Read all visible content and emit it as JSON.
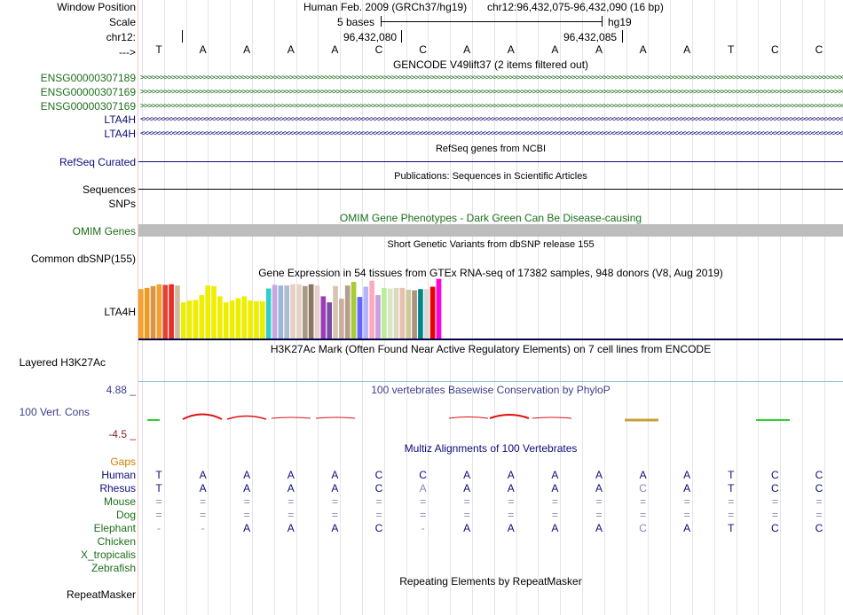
{
  "header": {
    "labels": [
      "Window Position",
      "Scale",
      "chr12:",
      "--->"
    ],
    "assembly": "Human Feb. 2009 (GRCh37/hg19)",
    "position": "chr12:96,432,075-96,432,090 (16 bp)",
    "scale_text": "5 bases",
    "scale_db": "hg19",
    "tick1": "96,432,080",
    "tick2": "96,432,085"
  },
  "bases": [
    "T",
    "A",
    "A",
    "A",
    "A",
    "C",
    "C",
    "A",
    "A",
    "A",
    "A",
    "A",
    "A",
    "T",
    "C",
    "C"
  ],
  "tracks": {
    "gencode": {
      "title": "GENCODE V49lift37 (2 items filtered out)",
      "items": [
        {
          "label": "ENSG00000307189",
          "dir": ">"
        },
        {
          "label": "ENSG00000307169",
          "dir": ">"
        },
        {
          "label": "ENSG00000307169",
          "dir": ">"
        },
        {
          "label": "LTA4H",
          "dir": "<"
        },
        {
          "label": "LTA4H",
          "dir": "<"
        }
      ],
      "color": "#1b6e1b",
      "lta4h_color": "#0c0c78"
    },
    "refseq": {
      "title": "RefSeq genes from NCBI",
      "label": "RefSeq Curated",
      "color": "#0c0c78"
    },
    "publications": {
      "title": "Publications: Sequences in Scientific Articles",
      "label": "Sequences"
    },
    "snps_label": "SNPs",
    "omim": {
      "title": "OMIM Gene Phenotypes - Dark Green Can Be Disease-causing",
      "label": "OMIM Genes",
      "color": "#1b6e1b"
    },
    "dbsnp": {
      "title": "Short Genetic Variants from dbSNP release 155",
      "label": "Common dbSNP(155)"
    },
    "gtex": {
      "title": "Gene Expression in 54 tissues from GTEx RNA-seq of 17382 samples, 948 donors (V8, Aug 2019)",
      "label": "LTA4H",
      "bars": [
        {
          "color": "#f4a131",
          "value": 0.82
        },
        {
          "color": "#ef9a22",
          "value": 0.84
        },
        {
          "color": "#d99445",
          "value": 0.87
        },
        {
          "color": "#f4a131",
          "value": 0.9
        },
        {
          "color": "#dd4436",
          "value": 0.89
        },
        {
          "color": "#ee2c25",
          "value": 0.9
        },
        {
          "color": "#cfbba0",
          "value": 0.88
        },
        {
          "color": "#eeee00",
          "value": 0.6
        },
        {
          "color": "#eeee00",
          "value": 0.63
        },
        {
          "color": "#eeee00",
          "value": 0.64
        },
        {
          "color": "#eeee00",
          "value": 0.72
        },
        {
          "color": "#eeee00",
          "value": 0.88
        },
        {
          "color": "#eeee00",
          "value": 0.87
        },
        {
          "color": "#eeee00",
          "value": 0.7
        },
        {
          "color": "#eeee00",
          "value": 0.6
        },
        {
          "color": "#eeee00",
          "value": 0.63
        },
        {
          "color": "#eeee00",
          "value": 0.67
        },
        {
          "color": "#eeee00",
          "value": 0.7
        },
        {
          "color": "#eeee00",
          "value": 0.63
        },
        {
          "color": "#eeee00",
          "value": 0.62
        },
        {
          "color": "#eeee00",
          "value": 0.62
        },
        {
          "color": "#33cccc",
          "value": 0.83
        },
        {
          "color": "#c8a6e0",
          "value": 0.89
        },
        {
          "color": "#9ab6dc",
          "value": 0.88
        },
        {
          "color": "#aebdce",
          "value": 0.88
        },
        {
          "color": "#e6cfc4",
          "value": 0.9
        },
        {
          "color": "#e6d2c4",
          "value": 0.9
        },
        {
          "color": "#a89a85",
          "value": 0.87
        },
        {
          "color": "#8c7662",
          "value": 0.9
        },
        {
          "color": "#e8cfcf",
          "value": 0.88
        },
        {
          "color": "#9a3db6",
          "value": 0.7
        },
        {
          "color": "#7c4aa5",
          "value": 0.6
        },
        {
          "color": "#d8c4b0",
          "value": 0.87
        },
        {
          "color": "#c8b09a",
          "value": 0.66
        },
        {
          "color": "#b59e8c",
          "value": 0.88
        },
        {
          "color": "#a6cc33",
          "value": 0.94
        },
        {
          "color": "#6666ff",
          "value": 0.69
        },
        {
          "color": "#b3b3ff",
          "value": 0.86
        },
        {
          "color": "#ffaabb",
          "value": 0.96
        },
        {
          "color": "#c8a0e0",
          "value": 0.72
        },
        {
          "color": "#bbee99",
          "value": 0.84
        },
        {
          "color": "#d8e7c6",
          "value": 0.83
        },
        {
          "color": "#ddd8c0",
          "value": 0.84
        },
        {
          "color": "#e8c0b0",
          "value": 0.84
        },
        {
          "color": "#cccc99",
          "value": 0.81
        },
        {
          "color": "#ad9280",
          "value": 0.8
        },
        {
          "color": "#008888",
          "value": 0.82
        },
        {
          "color": "#d9d9d9",
          "value": 0.82
        },
        {
          "color": "#ee0000",
          "value": 0.86
        },
        {
          "color": "#ff00dd",
          "value": 0.99
        },
        {
          "color": "#ffffff",
          "value": 0
        }
      ]
    },
    "h3k27ac": {
      "title": "H3K27Ac Mark (Often Found Near Active Regulatory Elements) on 7 cell lines from ENCODE",
      "label": "Layered H3K27Ac"
    },
    "phylop": {
      "title": "100 vertebrates Basewise Conservation by PhyloP",
      "label": "100 Vert. Cons",
      "max": "4.88 _",
      "min": "-4.5 _",
      "color": "#3c3c8c",
      "min_color": "#8c1c1c"
    },
    "multiz": {
      "title": "Multiz Alignments of 100 Vertebrates",
      "gaps_label": "Gaps",
      "gaps_color": "#d08000",
      "species": [
        {
          "name": "Human",
          "color": "#0c0c78",
          "bases": [
            "T",
            "A",
            "A",
            "A",
            "A",
            "C",
            "C",
            "A",
            "A",
            "A",
            "A",
            "A",
            "A",
            "T",
            "C",
            "C"
          ]
        },
        {
          "name": "Rhesus",
          "color": "#0c0c78",
          "bases": [
            "T",
            "A",
            "A",
            "A",
            "A",
            "C",
            "A",
            "A",
            "A",
            "A",
            "A",
            "C",
            "A",
            "T",
            "C",
            "C"
          ]
        },
        {
          "name": "Mouse",
          "color": "#1b6e1b",
          "bases": [
            "=",
            "=",
            "=",
            "=",
            "=",
            "=",
            "=",
            "=",
            "=",
            "=",
            "=",
            "=",
            "=",
            "=",
            "=",
            "="
          ]
        },
        {
          "name": "Dog",
          "color": "#1b6e1b",
          "bases": [
            "=",
            "=",
            "=",
            "=",
            "=",
            "=",
            "=",
            "=",
            "=",
            "=",
            "=",
            "=",
            "=",
            "=",
            "=",
            "="
          ]
        },
        {
          "name": "Elephant",
          "color": "#1b6e1b",
          "bases": [
            "-",
            "-",
            "A",
            "A",
            "A",
            "C",
            "-",
            "A",
            "A",
            "A",
            "A",
            "C",
            "A",
            "T",
            "C",
            "C"
          ]
        },
        {
          "name": "Chicken",
          "color": "#1b6e1b",
          "bases": []
        },
        {
          "name": "X_tropicalis",
          "color": "#1b6e1b",
          "bases": []
        },
        {
          "name": "Zebrafish",
          "color": "#1b6e1b",
          "bases": []
        }
      ]
    },
    "repeatmasker": {
      "title": "Repeating Elements by RepeatMasker",
      "label": "RepeatMasker"
    }
  }
}
